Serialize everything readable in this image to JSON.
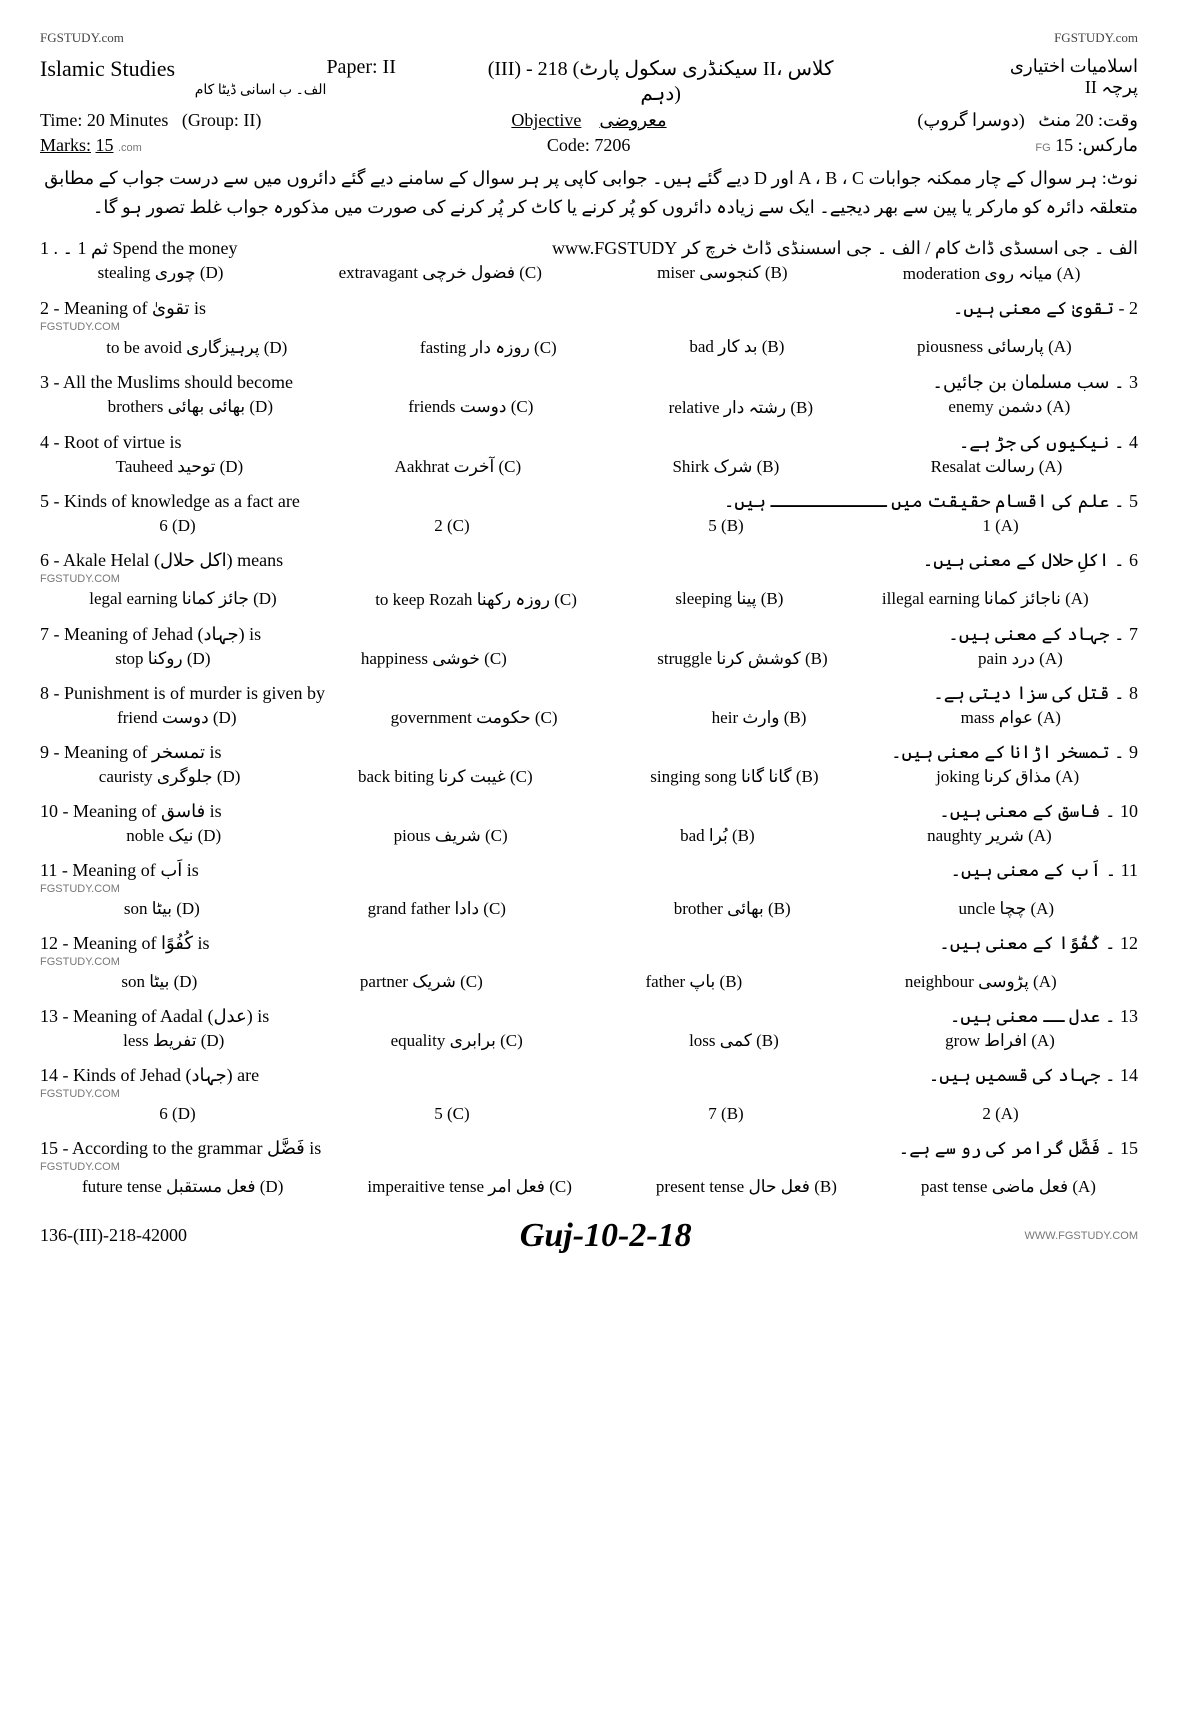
{
  "watermarks": {
    "top_left": "FGSTUDY.com",
    "top_right": "FGSTUDY.com",
    "bottom_right": "WWW.FGSTUDY.COM",
    "bottom_center": "WWW.FGSTUDY.COM"
  },
  "header": {
    "subject_en": "Islamic Studies",
    "subject_urdu": "اسلامیات اختیاری",
    "subject_sub_urdu": "الف۔ ب اسانی ڈیٹا کام",
    "paper_label": "Paper:",
    "paper_value": "II",
    "paper_urdu_label": "پرچہ",
    "paper_urdu_value": "II",
    "center_title": "(III) - 218 (سیکنڈری سکول پارٹ II، کلاس دہم)",
    "time_label": "Time:",
    "time_value": "20 Minutes",
    "group_label": "(Group: II)",
    "time_urdu_label": "وقت:",
    "time_urdu_value": "20 منٹ",
    "group_urdu": "(دوسرا گروپ)",
    "objective_en": "Objective",
    "objective_urdu": "معروضی",
    "marks_label": "Marks:",
    "marks_value": "15",
    "marks_urdu": "مارکس: 15",
    "code_label": "Code:",
    "code_value": "7206",
    "fg_label": "FG",
    "com_small": ".com"
  },
  "note_urdu": "نوٹ: ہر سوال کے چار ممکنہ جوابات A ، B ، C اور D دیے گئے ہیں۔ جوابی کاپی پر ہر سوال کے سامنے دیے گئے دائروں میں سے درست جواب کے مطابق متعلقہ دائرہ کو مارکر یا پین سے بھر دیجیے۔ ایک سے زیادہ دائروں کو پُر کرنے یا کاٹ کر پُر کرنے کی صورت میں مذکورہ جواب غلط تصور ہو گا۔",
  "questions": [
    {
      "num_en": "1 .",
      "stem_en": "ثم 1 ۔ Spend the money",
      "stem_urdu": "الف ۔ جی اسسڈی ڈاٹ کام  / الف ۔ جی اسسنڈی ڈاٹ خرچ کر www.FGSTUDY",
      "opts": [
        {
          "tag": "(A)",
          "urdu": "میانہ روی",
          "en": "moderation"
        },
        {
          "tag": "(B)",
          "urdu": "کنجوسی",
          "en": "miser"
        },
        {
          "tag": "(C)",
          "urdu": "فضول خرچی",
          "en": "extravagant"
        },
        {
          "tag": "(D)",
          "urdu": "چوری",
          "en": "stealing"
        }
      ]
    },
    {
      "num_en": "2 -",
      "stem_en": "Meaning of تقویٰ is",
      "stem_urdu": "2 - تقویٰ کے معنی ہیں۔",
      "wm": "FGSTUDY.COM",
      "opts": [
        {
          "tag": "(A)",
          "urdu": "پارسائی",
          "en": "piousness"
        },
        {
          "tag": "(B)",
          "urdu": "بد کار",
          "en": "bad"
        },
        {
          "tag": "(C)",
          "urdu": "روزہ دار",
          "en": "fasting"
        },
        {
          "tag": "(D)",
          "urdu": "پرہیزگاری",
          "en": "to be avoid"
        }
      ]
    },
    {
      "num_en": "3 -",
      "stem_en": "All the Muslims should become",
      "stem_urdu": "3 ۔ سب مسلمان بن جائیں۔",
      "opts": [
        {
          "tag": "(A)",
          "urdu": "دشمن",
          "en": "enemy"
        },
        {
          "tag": "(B)",
          "urdu": "رشتہ دار",
          "en": "relative"
        },
        {
          "tag": "(C)",
          "urdu": "دوست",
          "en": "friends"
        },
        {
          "tag": "(D)",
          "urdu": "بھائی بھائی",
          "en": "brothers"
        }
      ]
    },
    {
      "num_en": "4 -",
      "stem_en": "Root of virtue is",
      "stem_urdu": "4 ۔ نیکیوں کی جڑ ہے۔",
      "opts": [
        {
          "tag": "(A)",
          "urdu": "رسالت",
          "en": "Resalat"
        },
        {
          "tag": "(B)",
          "urdu": "شرک",
          "en": "Shirk"
        },
        {
          "tag": "(C)",
          "urdu": "آخرت",
          "en": "Aakhrat"
        },
        {
          "tag": "(D)",
          "urdu": "توحید",
          "en": "Tauheed"
        }
      ]
    },
    {
      "num_en": "5 -",
      "stem_en": "Kinds of knowledge as a fact are",
      "stem_urdu": "5 ۔ علم کی اقسام حقیقت میں ـــــــــــ ہیں۔",
      "opts": [
        {
          "tag": "(A)",
          "urdu": "",
          "en": "1"
        },
        {
          "tag": "(B)",
          "urdu": "",
          "en": "5"
        },
        {
          "tag": "(C)",
          "urdu": "",
          "en": "2"
        },
        {
          "tag": "(D)",
          "urdu": "",
          "en": "6"
        }
      ]
    },
    {
      "num_en": "6 -",
      "stem_en": "Akale Helal (اکل حلال) means",
      "stem_urdu": "6 ۔ اکلِ حلال کے معنی ہیں۔",
      "wm": "FGSTUDY.COM",
      "opts": [
        {
          "tag": "(A)",
          "urdu": "ناجائز کمانا",
          "en": "illegal earning"
        },
        {
          "tag": "(B)",
          "urdu": "پینا",
          "en": "sleeping"
        },
        {
          "tag": "(C)",
          "urdu": "روزہ رکھنا",
          "en": "to keep Rozah"
        },
        {
          "tag": "(D)",
          "urdu": "جائز کمانا",
          "en": "legal earning"
        }
      ]
    },
    {
      "num_en": "7 -",
      "stem_en": "Meaning of Jehad (جہاد) is",
      "stem_urdu": "7 ۔ جہاد کے معنی ہیں۔",
      "opts": [
        {
          "tag": "(A)",
          "urdu": "درد",
          "en": "pain"
        },
        {
          "tag": "(B)",
          "urdu": "کوشش کرنا",
          "en": "struggle"
        },
        {
          "tag": "(C)",
          "urdu": "خوشی",
          "en": "happiness"
        },
        {
          "tag": "(D)",
          "urdu": "روکنا",
          "en": "stop"
        }
      ]
    },
    {
      "num_en": "8 -",
      "stem_en": "Punishment is of murder is given by",
      "stem_urdu": "8 ۔ قتل کی سزا دیتی ہے۔",
      "opts": [
        {
          "tag": "(A)",
          "urdu": "عوام",
          "en": "mass"
        },
        {
          "tag": "(B)",
          "urdu": "وارث",
          "en": "heir"
        },
        {
          "tag": "(C)",
          "urdu": "حکومت",
          "en": "government"
        },
        {
          "tag": "(D)",
          "urdu": "دوست",
          "en": "friend"
        }
      ]
    },
    {
      "num_en": "9 -",
      "stem_en": "Meaning of تمسخر is",
      "stem_urdu": "9 ۔ تمسخر اڑانا کے معنی ہیں۔",
      "opts": [
        {
          "tag": "(A)",
          "urdu": "مذاق کرنا",
          "en": "joking"
        },
        {
          "tag": "(B)",
          "urdu": "گانا گانا",
          "en": "singing song"
        },
        {
          "tag": "(C)",
          "urdu": "غیبت کرنا",
          "en": "back biting"
        },
        {
          "tag": "(D)",
          "urdu": "جلوگری",
          "en": "cauristy"
        }
      ]
    },
    {
      "num_en": "10 -",
      "stem_en": "Meaning of فاسق is",
      "stem_urdu": "10 ۔ فاسق کے معنی ہیں۔",
      "opts": [
        {
          "tag": "(A)",
          "urdu": "شریر",
          "en": "naughty"
        },
        {
          "tag": "(B)",
          "urdu": "بُرا",
          "en": "bad"
        },
        {
          "tag": "(C)",
          "urdu": "شریف",
          "en": "pious"
        },
        {
          "tag": "(D)",
          "urdu": "نیک",
          "en": "noble"
        }
      ]
    },
    {
      "num_en": "11 -",
      "stem_en": "Meaning of اَب is",
      "stem_urdu": "11 ۔ اَب کے معنی ہیں۔",
      "wm": "FGSTUDY.COM",
      "opts": [
        {
          "tag": "(A)",
          "urdu": "چچا",
          "en": "uncle"
        },
        {
          "tag": "(B)",
          "urdu": "بھائی",
          "en": "brother"
        },
        {
          "tag": "(C)",
          "urdu": "دادا",
          "en": "grand father"
        },
        {
          "tag": "(D)",
          "urdu": "بیٹا",
          "en": "son"
        }
      ]
    },
    {
      "num_en": "12 -",
      "stem_en": "Meaning of کُفُوًا is",
      "stem_urdu": "12 ۔ کُفُوًا کے معنی ہیں۔",
      "wm": "FGSTUDY.COM",
      "opts": [
        {
          "tag": "(A)",
          "urdu": "پڑوسی",
          "en": "neighbour"
        },
        {
          "tag": "(B)",
          "urdu": "باپ",
          "en": "father"
        },
        {
          "tag": "(C)",
          "urdu": "شریک",
          "en": "partner"
        },
        {
          "tag": "(D)",
          "urdu": "بیٹا",
          "en": "son"
        }
      ]
    },
    {
      "num_en": "13 -",
      "stem_en": "Meaning of Aadal (عدل) is",
      "stem_urdu": "13 ۔ عدل ــ معنی ہیں۔",
      "opts": [
        {
          "tag": "(A)",
          "urdu": "افراط",
          "en": "grow"
        },
        {
          "tag": "(B)",
          "urdu": "کمی",
          "en": "loss"
        },
        {
          "tag": "(C)",
          "urdu": "برابری",
          "en": "equality"
        },
        {
          "tag": "(D)",
          "urdu": "تفریط",
          "en": "less"
        }
      ]
    },
    {
      "num_en": "14 -",
      "stem_en": "Kinds of Jehad (جہاد) are",
      "stem_urdu": "14 ۔ جہاد کی قسمیں ہیں۔",
      "wm": "FGSTUDY.COM",
      "opts": [
        {
          "tag": "(A)",
          "urdu": "",
          "en": "2"
        },
        {
          "tag": "(B)",
          "urdu": "",
          "en": "7"
        },
        {
          "tag": "(C)",
          "urdu": "",
          "en": "5"
        },
        {
          "tag": "(D)",
          "urdu": "",
          "en": "6"
        }
      ]
    },
    {
      "num_en": "15 -",
      "stem_en": "According to the grammar فَضَّل is",
      "stem_urdu": "15 ۔ فَضَّل گرامر کی رو سے ہے۔",
      "wm": "FGSTUDY.COM",
      "opts": [
        {
          "tag": "(A)",
          "urdu": "فعل ماضی",
          "en": "past tense"
        },
        {
          "tag": "(B)",
          "urdu": "فعل حال",
          "en": "present tense"
        },
        {
          "tag": "(C)",
          "urdu": "فعل امر",
          "en": "imperaitive tense"
        },
        {
          "tag": "(D)",
          "urdu": "فعل مستقبل",
          "en": "future tense"
        }
      ]
    }
  ],
  "footer": {
    "code_left": "136-(III)-218-42000",
    "handwritten": "Guj-10-2-18",
    "wm_right": "WWW.FGSTUDY.COM"
  }
}
